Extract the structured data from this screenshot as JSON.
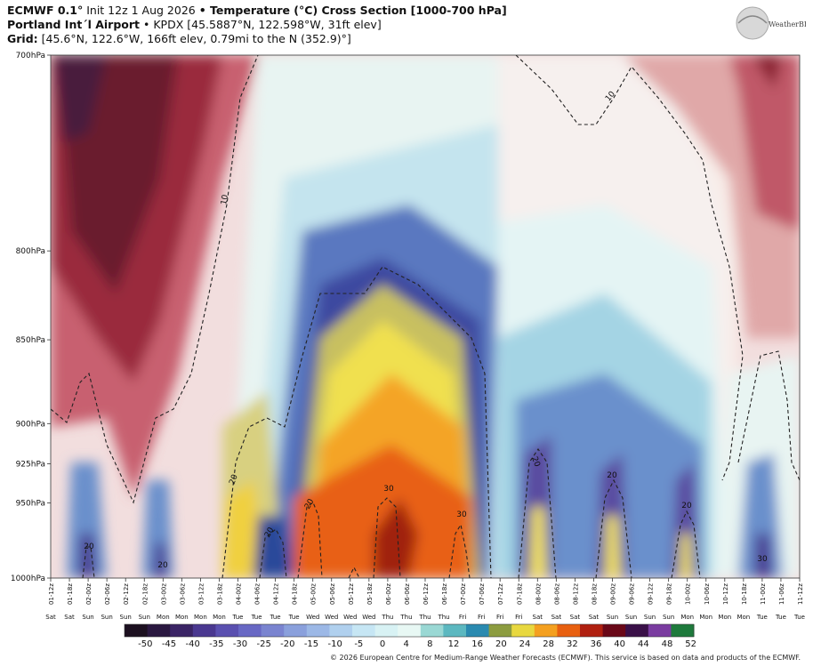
{
  "header": {
    "line1_model": "ECMWF 0.1°",
    "line1_init": " Init 12z 1 Aug 2026 ",
    "line1_title": "• Temperature (°C) Cross Section [1000-700 hPa]",
    "line2_station": "Portland Int´l Airport",
    "line2_detail": " • KPDX [45.5887°N, 122.598°W, 31ft elev]",
    "line3_label": "Grid:",
    "line3_detail": " [45.6°N, 122.6°W, 166ft elev, 0.79mi to the N (352.9)°]"
  },
  "logo_text": "WeatherBELL",
  "copyright": "© 2026 European Centre for Medium-Range Weather Forecasts (ECMWF). This service is based on data and products of the ECMWF.",
  "chart_data": {
    "type": "heatmap",
    "title": "Temperature (°C) Cross Section [1000-700 hPa]",
    "y_levels": [
      "700hPa",
      "800hPa",
      "850hPa",
      "900hPa",
      "925hPa",
      "950hPa",
      "1000hPa"
    ],
    "y_values": [
      700,
      800,
      850,
      900,
      925,
      950,
      1000
    ],
    "x_labels": [
      "01-12z",
      "01-18z",
      "02-00z",
      "02-06z",
      "02-12z",
      "02-18z",
      "03-00z",
      "03-06z",
      "03-12z",
      "03-18z",
      "04-00z",
      "04-06z",
      "04-12z",
      "04-18z",
      "05-00z",
      "05-06z",
      "05-12z",
      "05-18z",
      "06-00z",
      "06-06z",
      "06-12z",
      "06-18z",
      "07-00z",
      "07-06z",
      "07-12z",
      "07-18z",
      "08-00z",
      "08-06z",
      "08-12z",
      "08-18z",
      "09-00z",
      "09-06z",
      "09-12z",
      "09-18z",
      "10-00z",
      "10-06z",
      "10-12z",
      "10-18z",
      "11-00z",
      "11-06z",
      "11-12z"
    ],
    "x_days": [
      "Sat",
      "Sat",
      "Sun",
      "Sun",
      "Sun",
      "Sun",
      "Mon",
      "Mon",
      "Mon",
      "Mon",
      "Tue",
      "Tue",
      "Tue",
      "Tue",
      "Wed",
      "Wed",
      "Wed",
      "Wed",
      "Thu",
      "Thu",
      "Thu",
      "Thu",
      "Fri",
      "Fri",
      "Fri",
      "Fri",
      "Sat",
      "Sat",
      "Sat",
      "Sat",
      "Sun",
      "Sun",
      "Sun",
      "Sun",
      "Mon",
      "Mon",
      "Mon",
      "Mon",
      "Tue",
      "Tue",
      "Tue"
    ],
    "colorbar": {
      "ticks": [
        -50,
        -45,
        -40,
        -35,
        -30,
        -25,
        -20,
        -15,
        -10,
        -5,
        0,
        4,
        8,
        12,
        16,
        20,
        24,
        28,
        32,
        36,
        40,
        44,
        48,
        52
      ],
      "colors": [
        "#1c1020",
        "#2a1840",
        "#3a2465",
        "#4a3890",
        "#5a50b0",
        "#6868c4",
        "#7a84d0",
        "#8aa0dc",
        "#9cb8e6",
        "#b0d0ee",
        "#c6e6f4",
        "#d8f2f4",
        "#e8f8f4",
        "#9ad8d4",
        "#5cb8c0",
        "#2a8ab0",
        "#8c9c40",
        "#e8d840",
        "#f4a020",
        "#e86010",
        "#b02010",
        "#6a0818",
        "#3a1048",
        "#7a3ca0",
        "#1e7a3c"
      ]
    },
    "contours": [
      {
        "label": "10",
        "level": 10,
        "style": "dashed"
      },
      {
        "label": "20",
        "level": 20,
        "style": "dashed"
      },
      {
        "label": "30",
        "level": 30,
        "style": "dashed"
      }
    ],
    "contour_labels": [
      "10",
      "10",
      "20",
      "20",
      "20",
      "20",
      "20",
      "20",
      "20",
      "20",
      "30",
      "30",
      "30"
    ]
  }
}
